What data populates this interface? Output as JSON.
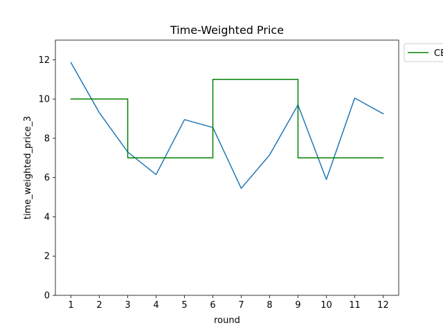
{
  "chart_data": {
    "type": "line",
    "title": "Time-Weighted Price",
    "xlabel": "round",
    "ylabel": "time_weighted_price_3",
    "xlim": [
      0.45,
      12.55
    ],
    "ylim": [
      0,
      13
    ],
    "xticks": [
      1,
      2,
      3,
      4,
      5,
      6,
      7,
      8,
      9,
      10,
      11,
      12
    ],
    "yticks": [
      0,
      2,
      4,
      6,
      8,
      10,
      12
    ],
    "grid": false,
    "legend_position": "outside-top-right",
    "series": [
      {
        "color": "#1f77b4",
        "style": "line",
        "x": [
          1,
          2,
          3,
          4,
          5,
          6,
          7,
          8,
          9,
          10,
          11,
          12
        ],
        "y": [
          11.85,
          9.3,
          7.3,
          6.15,
          8.95,
          8.55,
          5.45,
          7.15,
          9.7,
          5.9,
          10.05,
          9.25
        ]
      },
      {
        "name": "CE",
        "color": "#008000",
        "style": "step",
        "x": [
          1,
          3,
          3,
          6,
          6,
          9,
          9,
          12
        ],
        "y": [
          10,
          10,
          7,
          7,
          11,
          11,
          7,
          7
        ]
      }
    ]
  }
}
